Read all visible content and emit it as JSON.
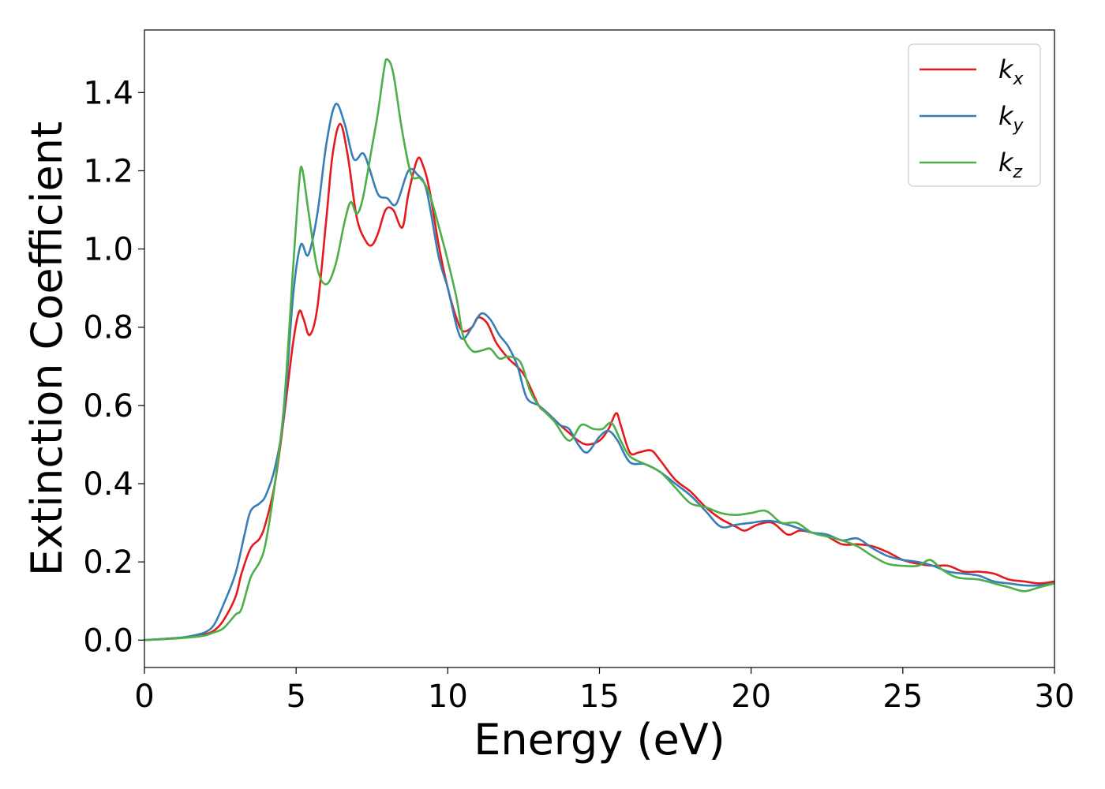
{
  "chart_data": {
    "type": "line",
    "title": "",
    "xlabel": "Energy (eV)",
    "ylabel": "Extinction Coefficient",
    "xlim": [
      0,
      30
    ],
    "ylim": [
      -0.07,
      1.56
    ],
    "xticks": [
      0,
      5,
      10,
      15,
      20,
      25,
      30
    ],
    "xtick_labels": [
      "0",
      "5",
      "10",
      "15",
      "20",
      "25",
      "30"
    ],
    "yticks": [
      0.0,
      0.2,
      0.4,
      0.6,
      0.8,
      1.0,
      1.2,
      1.4
    ],
    "ytick_labels": [
      "0.0",
      "0.2",
      "0.4",
      "0.6",
      "0.8",
      "1.0",
      "1.2",
      "1.4"
    ],
    "grid": false,
    "legend_position": "top-right",
    "series": [
      {
        "name": "k_x",
        "base": "k",
        "sub": "x",
        "color": "#e41a1c",
        "points": [
          [
            0,
            0
          ],
          [
            1,
            0.005
          ],
          [
            1.5,
            0.008
          ],
          [
            2,
            0.015
          ],
          [
            2.3,
            0.025
          ],
          [
            2.6,
            0.05
          ],
          [
            3,
            0.11
          ],
          [
            3.2,
            0.17
          ],
          [
            3.5,
            0.235
          ],
          [
            3.8,
            0.26
          ],
          [
            4,
            0.3
          ],
          [
            4.3,
            0.4
          ],
          [
            4.6,
            0.57
          ],
          [
            4.9,
            0.76
          ],
          [
            5.1,
            0.84
          ],
          [
            5.25,
            0.82
          ],
          [
            5.45,
            0.78
          ],
          [
            5.7,
            0.85
          ],
          [
            6.0,
            1.08
          ],
          [
            6.2,
            1.24
          ],
          [
            6.45,
            1.32
          ],
          [
            6.7,
            1.24
          ],
          [
            7.0,
            1.08
          ],
          [
            7.3,
            1.02
          ],
          [
            7.5,
            1.01
          ],
          [
            7.7,
            1.04
          ],
          [
            7.95,
            1.1
          ],
          [
            8.2,
            1.1
          ],
          [
            8.5,
            1.055
          ],
          [
            8.7,
            1.14
          ],
          [
            9.0,
            1.23
          ],
          [
            9.2,
            1.21
          ],
          [
            9.4,
            1.15
          ],
          [
            9.7,
            1.01
          ],
          [
            10.0,
            0.9
          ],
          [
            10.3,
            0.82
          ],
          [
            10.5,
            0.79
          ],
          [
            10.8,
            0.8
          ],
          [
            11.0,
            0.825
          ],
          [
            11.3,
            0.81
          ],
          [
            11.6,
            0.76
          ],
          [
            12.0,
            0.72
          ],
          [
            12.5,
            0.68
          ],
          [
            13.0,
            0.6
          ],
          [
            13.3,
            0.58
          ],
          [
            13.7,
            0.55
          ],
          [
            14.0,
            0.53
          ],
          [
            14.3,
            0.51
          ],
          [
            14.6,
            0.5
          ],
          [
            15.0,
            0.51
          ],
          [
            15.3,
            0.54
          ],
          [
            15.55,
            0.58
          ],
          [
            15.7,
            0.55
          ],
          [
            16.0,
            0.48
          ],
          [
            16.3,
            0.48
          ],
          [
            16.7,
            0.485
          ],
          [
            17.0,
            0.46
          ],
          [
            17.5,
            0.41
          ],
          [
            18.0,
            0.38
          ],
          [
            18.5,
            0.34
          ],
          [
            19.0,
            0.31
          ],
          [
            19.5,
            0.29
          ],
          [
            19.8,
            0.28
          ],
          [
            20.2,
            0.295
          ],
          [
            20.7,
            0.3
          ],
          [
            21.2,
            0.27
          ],
          [
            21.6,
            0.28
          ],
          [
            22.0,
            0.275
          ],
          [
            22.5,
            0.265
          ],
          [
            23.0,
            0.245
          ],
          [
            23.5,
            0.245
          ],
          [
            24.0,
            0.24
          ],
          [
            24.5,
            0.225
          ],
          [
            25.0,
            0.205
          ],
          [
            25.5,
            0.195
          ],
          [
            26.0,
            0.19
          ],
          [
            26.5,
            0.19
          ],
          [
            27.0,
            0.175
          ],
          [
            27.5,
            0.175
          ],
          [
            28.0,
            0.17
          ],
          [
            28.5,
            0.155
          ],
          [
            29.0,
            0.15
          ],
          [
            29.5,
            0.145
          ],
          [
            30.0,
            0.15
          ]
        ]
      },
      {
        "name": "k_y",
        "base": "k",
        "sub": "y",
        "color": "#377eb8",
        "points": [
          [
            0,
            0
          ],
          [
            1,
            0.005
          ],
          [
            1.5,
            0.01
          ],
          [
            2,
            0.02
          ],
          [
            2.3,
            0.04
          ],
          [
            2.6,
            0.09
          ],
          [
            3,
            0.17
          ],
          [
            3.3,
            0.27
          ],
          [
            3.5,
            0.33
          ],
          [
            3.8,
            0.35
          ],
          [
            4.0,
            0.37
          ],
          [
            4.3,
            0.44
          ],
          [
            4.6,
            0.58
          ],
          [
            4.9,
            0.88
          ],
          [
            5.15,
            1.01
          ],
          [
            5.4,
            0.985
          ],
          [
            5.7,
            1.09
          ],
          [
            6.0,
            1.27
          ],
          [
            6.3,
            1.37
          ],
          [
            6.6,
            1.32
          ],
          [
            6.9,
            1.23
          ],
          [
            7.2,
            1.245
          ],
          [
            7.4,
            1.21
          ],
          [
            7.7,
            1.14
          ],
          [
            8.0,
            1.13
          ],
          [
            8.3,
            1.115
          ],
          [
            8.7,
            1.2
          ],
          [
            9.0,
            1.19
          ],
          [
            9.3,
            1.15
          ],
          [
            9.7,
            0.98
          ],
          [
            10.0,
            0.9
          ],
          [
            10.3,
            0.8
          ],
          [
            10.5,
            0.77
          ],
          [
            10.8,
            0.8
          ],
          [
            11.1,
            0.835
          ],
          [
            11.4,
            0.82
          ],
          [
            11.7,
            0.78
          ],
          [
            12.0,
            0.75
          ],
          [
            12.3,
            0.7
          ],
          [
            12.6,
            0.62
          ],
          [
            13.0,
            0.6
          ],
          [
            13.3,
            0.58
          ],
          [
            13.7,
            0.55
          ],
          [
            14.0,
            0.54
          ],
          [
            14.3,
            0.5
          ],
          [
            14.6,
            0.48
          ],
          [
            15.0,
            0.52
          ],
          [
            15.3,
            0.535
          ],
          [
            15.6,
            0.51
          ],
          [
            16.0,
            0.455
          ],
          [
            16.5,
            0.45
          ],
          [
            17.0,
            0.43
          ],
          [
            17.5,
            0.4
          ],
          [
            18.0,
            0.37
          ],
          [
            18.5,
            0.33
          ],
          [
            19.0,
            0.29
          ],
          [
            19.5,
            0.295
          ],
          [
            20.0,
            0.3
          ],
          [
            20.6,
            0.305
          ],
          [
            21.2,
            0.295
          ],
          [
            21.6,
            0.285
          ],
          [
            22.0,
            0.275
          ],
          [
            22.5,
            0.27
          ],
          [
            23.0,
            0.255
          ],
          [
            23.5,
            0.26
          ],
          [
            24.0,
            0.235
          ],
          [
            24.5,
            0.215
          ],
          [
            25.0,
            0.205
          ],
          [
            25.5,
            0.2
          ],
          [
            26.0,
            0.19
          ],
          [
            26.5,
            0.175
          ],
          [
            27.0,
            0.17
          ],
          [
            27.5,
            0.165
          ],
          [
            28.0,
            0.15
          ],
          [
            28.5,
            0.145
          ],
          [
            29.0,
            0.14
          ],
          [
            29.5,
            0.14
          ],
          [
            30.0,
            0.145
          ]
        ]
      },
      {
        "name": "k_z",
        "base": "k",
        "sub": "z",
        "color": "#4daf4a",
        "points": [
          [
            0,
            0
          ],
          [
            1,
            0.004
          ],
          [
            1.5,
            0.007
          ],
          [
            2,
            0.012
          ],
          [
            2.3,
            0.02
          ],
          [
            2.6,
            0.03
          ],
          [
            3,
            0.065
          ],
          [
            3.2,
            0.08
          ],
          [
            3.5,
            0.16
          ],
          [
            3.8,
            0.2
          ],
          [
            4.0,
            0.25
          ],
          [
            4.3,
            0.4
          ],
          [
            4.6,
            0.6
          ],
          [
            4.9,
            0.95
          ],
          [
            5.1,
            1.17
          ],
          [
            5.2,
            1.205
          ],
          [
            5.4,
            1.1
          ],
          [
            5.7,
            0.95
          ],
          [
            6.0,
            0.91
          ],
          [
            6.3,
            0.96
          ],
          [
            6.6,
            1.07
          ],
          [
            6.8,
            1.12
          ],
          [
            7.0,
            1.09
          ],
          [
            7.2,
            1.13
          ],
          [
            7.5,
            1.26
          ],
          [
            7.7,
            1.35
          ],
          [
            7.9,
            1.46
          ],
          [
            8.0,
            1.485
          ],
          [
            8.2,
            1.45
          ],
          [
            8.5,
            1.3
          ],
          [
            8.8,
            1.19
          ],
          [
            9.1,
            1.18
          ],
          [
            9.4,
            1.14
          ],
          [
            9.8,
            1.03
          ],
          [
            10.0,
            0.97
          ],
          [
            10.3,
            0.87
          ],
          [
            10.5,
            0.78
          ],
          [
            10.8,
            0.74
          ],
          [
            11.1,
            0.74
          ],
          [
            11.4,
            0.745
          ],
          [
            11.7,
            0.72
          ],
          [
            12.0,
            0.725
          ],
          [
            12.4,
            0.71
          ],
          [
            12.7,
            0.64
          ],
          [
            13.0,
            0.6
          ],
          [
            13.5,
            0.56
          ],
          [
            14.0,
            0.51
          ],
          [
            14.4,
            0.55
          ],
          [
            14.8,
            0.54
          ],
          [
            15.1,
            0.54
          ],
          [
            15.4,
            0.555
          ],
          [
            15.7,
            0.51
          ],
          [
            16.0,
            0.47
          ],
          [
            16.5,
            0.45
          ],
          [
            17.0,
            0.43
          ],
          [
            17.5,
            0.39
          ],
          [
            18.0,
            0.35
          ],
          [
            18.5,
            0.34
          ],
          [
            19.0,
            0.325
          ],
          [
            19.5,
            0.32
          ],
          [
            20.0,
            0.325
          ],
          [
            20.5,
            0.33
          ],
          [
            21.0,
            0.3
          ],
          [
            21.5,
            0.3
          ],
          [
            22.0,
            0.275
          ],
          [
            22.5,
            0.265
          ],
          [
            23.0,
            0.255
          ],
          [
            23.5,
            0.24
          ],
          [
            24.0,
            0.215
          ],
          [
            24.5,
            0.195
          ],
          [
            25.0,
            0.19
          ],
          [
            25.5,
            0.19
          ],
          [
            25.9,
            0.205
          ],
          [
            26.3,
            0.18
          ],
          [
            26.8,
            0.16
          ],
          [
            27.5,
            0.155
          ],
          [
            28.0,
            0.145
          ],
          [
            28.5,
            0.135
          ],
          [
            29.0,
            0.125
          ],
          [
            29.5,
            0.135
          ],
          [
            30.0,
            0.145
          ]
        ]
      }
    ]
  }
}
